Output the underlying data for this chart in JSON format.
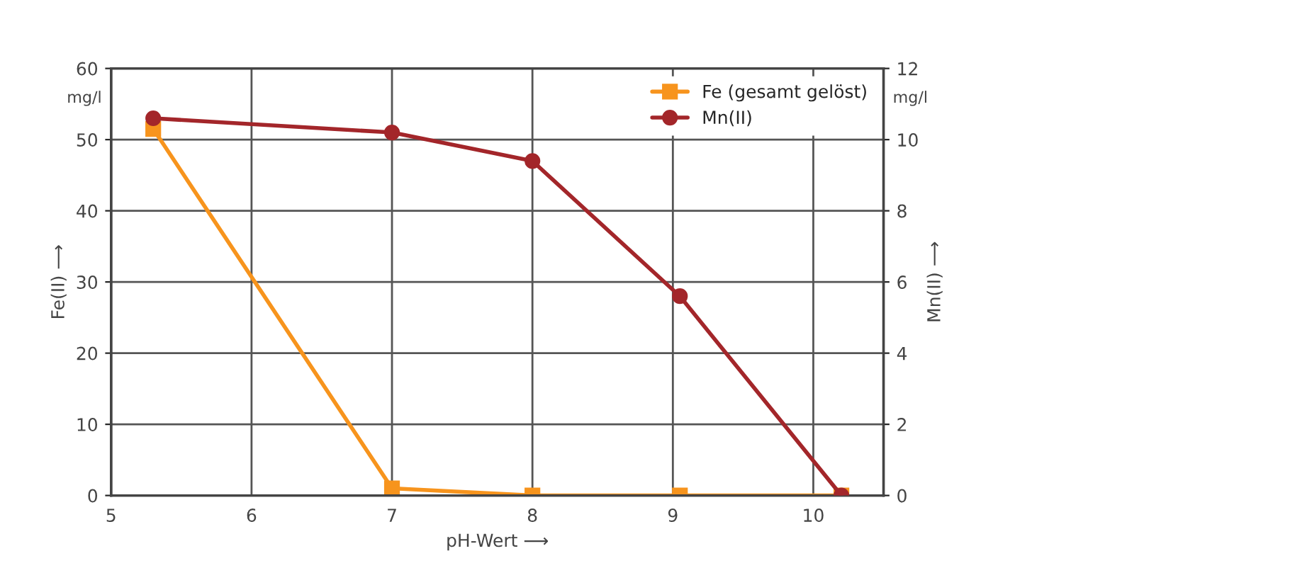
{
  "chart_data": {
    "type": "line",
    "xlabel": "pH-Wert ⟶",
    "ylabel": "Fe(II) ⟶",
    "y2label": "Mn(II) ⟶",
    "annotations": [
      "mg/l",
      "mg/l"
    ],
    "series": [
      {
        "name": "Fe (gesamt gelöst)",
        "color": "#f7941d",
        "marker": "square",
        "x": [
          5.3,
          7,
          8,
          9.05,
          10.2
        ],
        "values": [
          51.5,
          1,
          0,
          0,
          0
        ]
      },
      {
        "name": "Mn(II)",
        "color": "#a3262a",
        "marker": "circle",
        "axis": "y2",
        "x": [
          5.3,
          7,
          8,
          9.05,
          10.2
        ],
        "values": [
          10.6,
          10.2,
          9.4,
          5.6,
          0
        ]
      }
    ],
    "xlim": [
      5,
      10.5
    ],
    "xticks": [
      5,
      6,
      7,
      8,
      9,
      10
    ],
    "ylim": [
      0,
      60
    ],
    "yticks": [
      0,
      10,
      20,
      30,
      40,
      50,
      60
    ],
    "y2lim": [
      0,
      12
    ],
    "y2ticks": [
      0,
      2,
      4,
      6,
      8,
      10,
      12
    ],
    "grid": true,
    "legend": "top right",
    "line_style": "solid"
  }
}
